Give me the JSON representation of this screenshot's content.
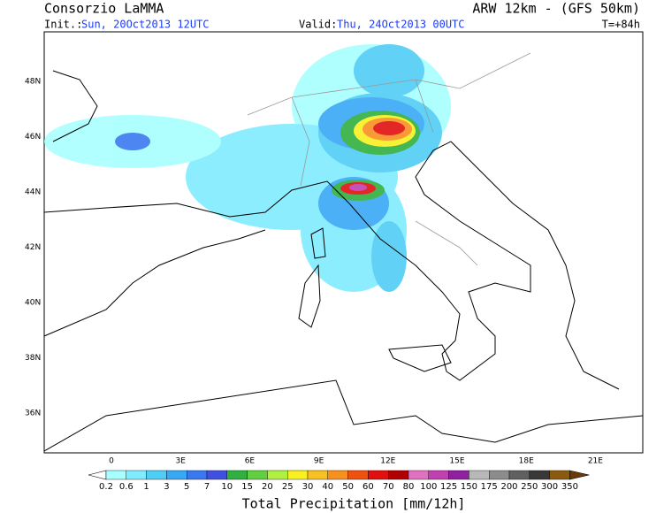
{
  "header": {
    "title": "Consorzio LaMMA",
    "model": "ARW 12km - (GFS 50km)",
    "init_label": "Init.:",
    "init_value": "Sun, 20Oct2013 12UTC",
    "valid_label": "Valid:",
    "valid_value": "Thu, 24Oct2013 00UTC",
    "lead_time": "T=+84h"
  },
  "map": {
    "lat_labels": [
      "48N",
      "46N",
      "44N",
      "42N",
      "40N",
      "38N",
      "36N"
    ],
    "lon_labels": [
      "0",
      "3E",
      "6E",
      "9E",
      "12E",
      "15E",
      "18E",
      "21E"
    ]
  },
  "colorbar": {
    "title": "Total Precipitation [mm/12h]",
    "labels": [
      "0.2",
      "0.6",
      "1",
      "3",
      "5",
      "7",
      "10",
      "15",
      "20",
      "25",
      "30",
      "40",
      "50",
      "60",
      "70",
      "80",
      "100",
      "125",
      "150",
      "175",
      "200",
      "250",
      "300",
      "350"
    ],
    "colors": [
      "#a8ffff",
      "#80ecff",
      "#50cdf5",
      "#38a8f5",
      "#3a78f0",
      "#4050e0",
      "#30b040",
      "#60d040",
      "#b0f040",
      "#f8f020",
      "#f8c020",
      "#f89020",
      "#f05010",
      "#e01010",
      "#b00000",
      "#e070c0",
      "#c040b0",
      "#9020a0",
      "#b8b8b8",
      "#8c8c8c",
      "#606060",
      "#383838",
      "#8a5a10",
      "#6a3a08"
    ]
  }
}
